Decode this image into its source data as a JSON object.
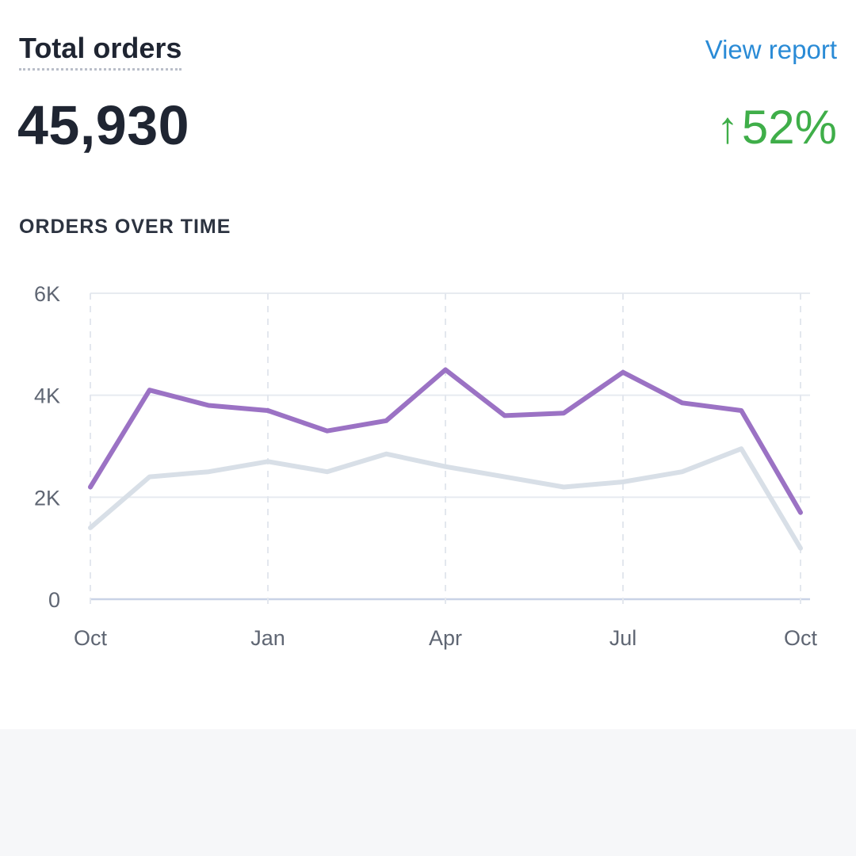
{
  "header": {
    "title": "Total orders",
    "link_label": "View report",
    "total_value": "45,930",
    "change_value": "52%",
    "change_direction_icon": "arrow-up-icon"
  },
  "section_label": "ORDERS OVER TIME",
  "colors": {
    "primary_series": "#9b72c4",
    "secondary_series": "#d8dfe7",
    "positive": "#3fae49",
    "link": "#2a8bd6"
  },
  "chart_data": {
    "type": "line",
    "ylim": [
      0,
      6000
    ],
    "yticks": [
      {
        "value": 0,
        "label": "0"
      },
      {
        "value": 2000,
        "label": "2K"
      },
      {
        "value": 4000,
        "label": "4K"
      },
      {
        "value": 6000,
        "label": "6K"
      }
    ],
    "x_count": 13,
    "x_ticks": [
      {
        "index": 0,
        "label": "Oct"
      },
      {
        "index": 3,
        "label": "Jan"
      },
      {
        "index": 6,
        "label": "Apr"
      },
      {
        "index": 9,
        "label": "Jul"
      },
      {
        "index": 12,
        "label": "Oct"
      }
    ],
    "grid": true,
    "series": [
      {
        "values": [
          2200,
          4100,
          3800,
          3700,
          3300,
          3500,
          4500,
          3600,
          3650,
          4450,
          3850,
          3700,
          1700
        ]
      },
      {
        "values": [
          1400,
          2400,
          2500,
          2700,
          2500,
          2850,
          2600,
          2400,
          2200,
          2300,
          2500,
          2950,
          1000
        ]
      }
    ]
  }
}
